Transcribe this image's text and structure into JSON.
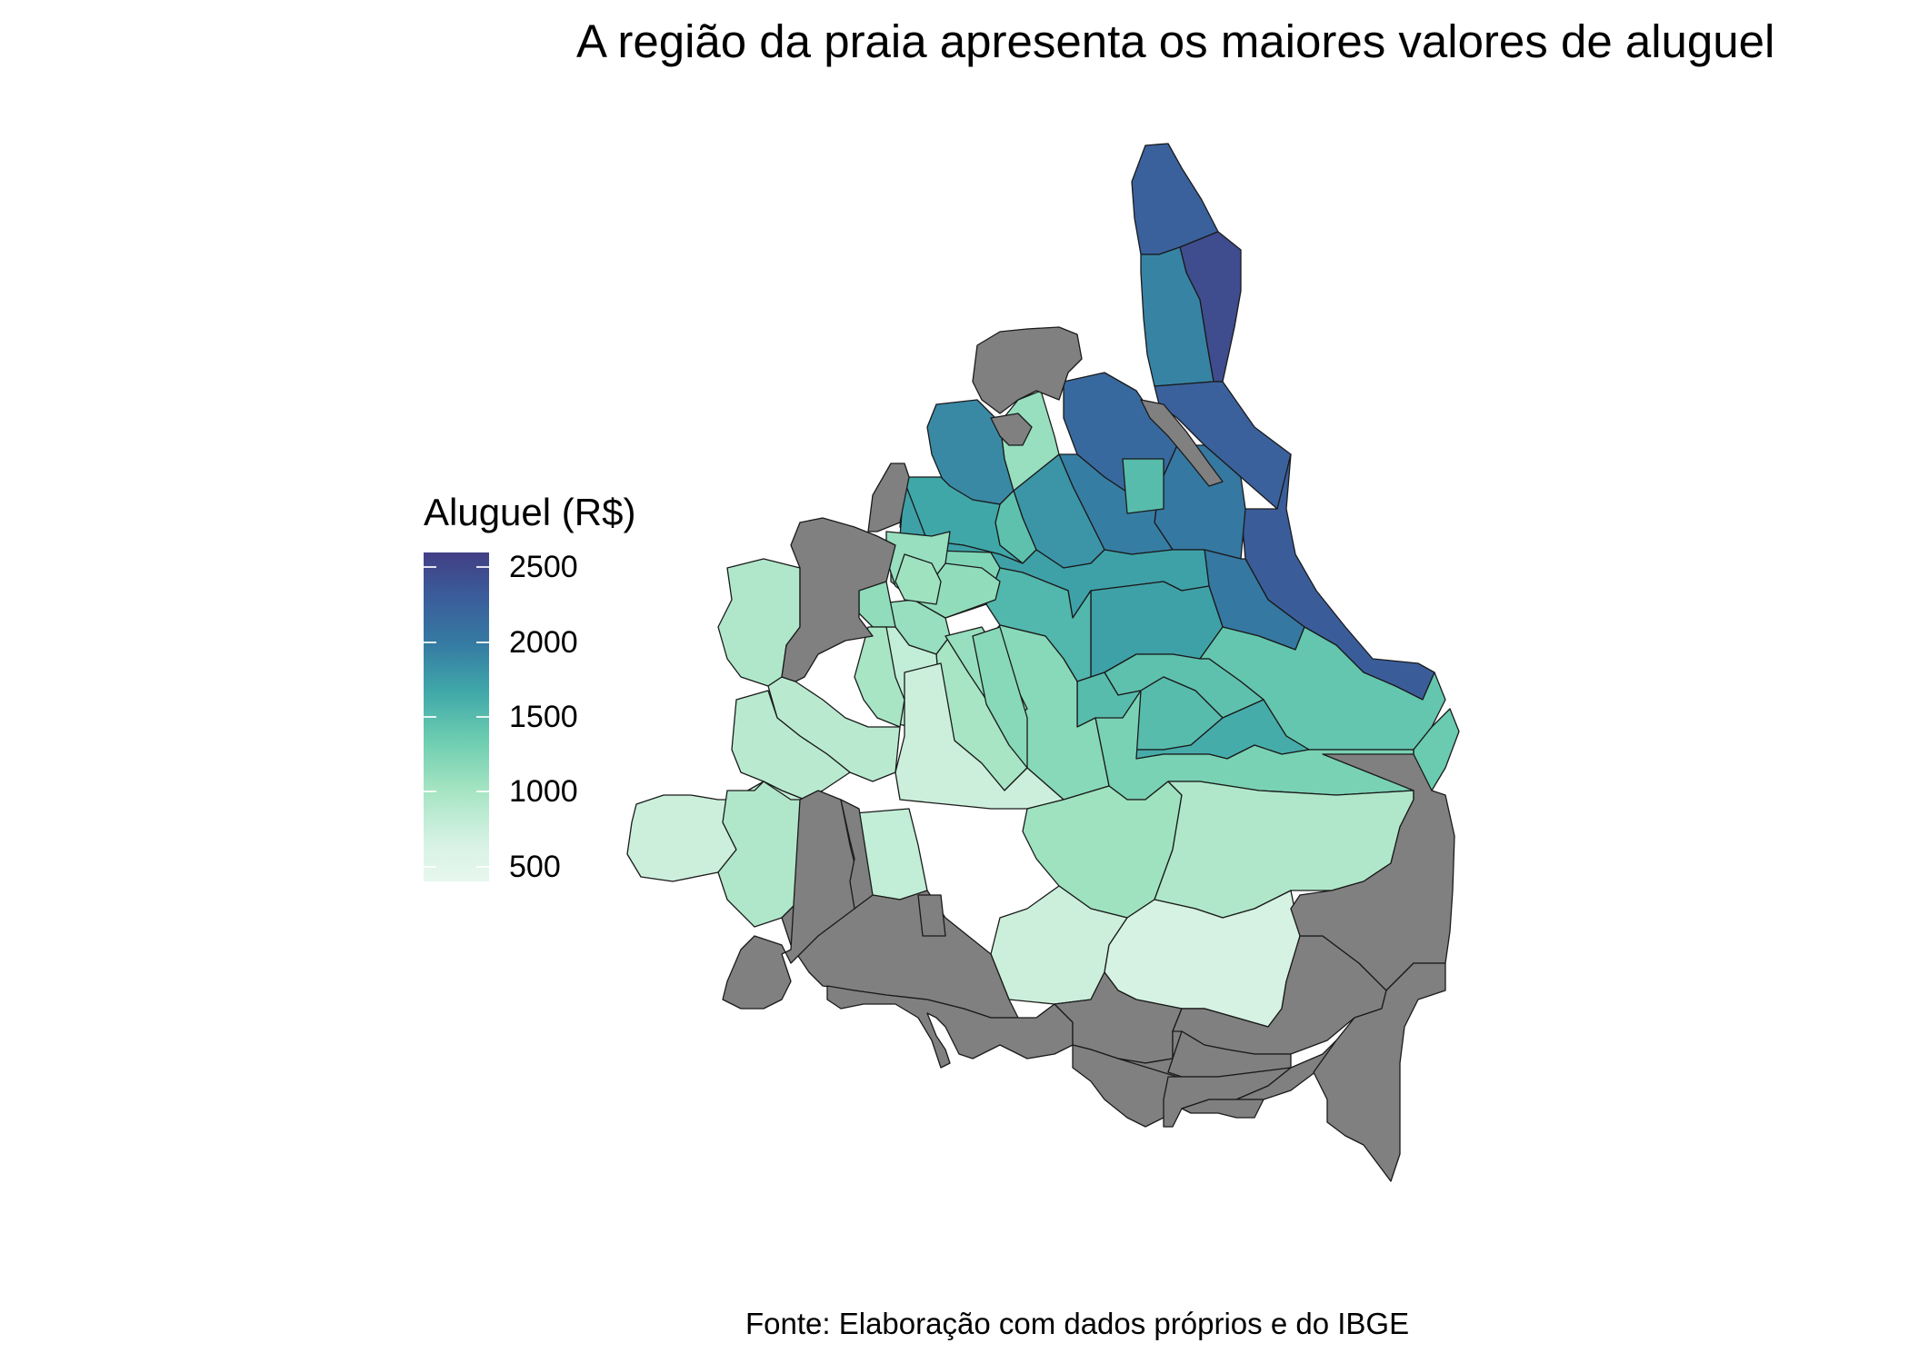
{
  "title": "A região da praia apresenta os maiores valores de aluguel",
  "caption": "Fonte: Elaboração com dados próprios e do IBGE",
  "legend": {
    "title": "Aluguel (R$)",
    "ticks": [
      {
        "value": 2500,
        "label": "2500"
      },
      {
        "value": 2000,
        "label": "2000"
      },
      {
        "value": 1500,
        "label": "1500"
      },
      {
        "value": 1000,
        "label": "1000"
      },
      {
        "value": 500,
        "label": "500"
      }
    ],
    "range": [
      400,
      2600
    ],
    "na_color": "#808080",
    "colors": [
      "#423f85",
      "#3a5e9b",
      "#357ba3",
      "#40a7a9",
      "#6ccdb0",
      "#a4e4c2",
      "#e7f7ee"
    ]
  },
  "chart_data": {
    "type": "choropleth",
    "variable": "Aluguel (R$)",
    "regions": [
      {
        "value": 2200
      },
      {
        "value": 2450
      },
      {
        "value": 1800
      },
      {
        "value": 2200
      },
      {
        "value": 2250
      },
      {
        "value": 2100
      },
      {
        "value": 1900
      },
      {
        "value": 1900
      },
      {
        "value": 1750
      },
      {
        "value": 1850
      },
      {
        "value": 1650
      },
      {
        "value": 1300
      },
      {
        "value": 850
      },
      {
        "value": 1250
      },
      {
        "value": 1500
      },
      {
        "value": 1550
      },
      {
        "value": 1550
      },
      {
        "value": 1350
      },
      {
        "value": 1200
      },
      {
        "value": 1250
      },
      {
        "value": 1300
      },
      {
        "value": 1450
      },
      {
        "value": 1150
      },
      {
        "value": 1050
      },
      {
        "value": 1000
      },
      {
        "value": 950
      },
      {
        "value": 850
      },
      {
        "value": 750
      },
      {
        "value": 600
      },
      {
        "value": 550
      },
      {
        "value": 800
      },
      {
        "value": 700
      },
      {
        "value": 550
      },
      {
        "value": 500
      },
      {
        "value": 850
      },
      {
        "value": 900
      },
      {
        "value": 800
      },
      {
        "value": 850
      },
      {
        "value": 950
      },
      {
        "value": 900
      },
      {
        "value": 700
      },
      {
        "value": 750
      },
      {
        "value": 650
      },
      {
        "value": 600
      },
      {
        "value": 650
      },
      {
        "value": 600
      },
      {
        "value": 550
      },
      {
        "value": 700
      },
      {
        "value": null
      },
      {
        "value": null
      },
      {
        "value": null
      },
      {
        "value": null
      },
      {
        "value": null
      },
      {
        "value": null
      },
      {
        "value": null
      },
      {
        "value": null
      },
      {
        "value": null
      },
      {
        "value": null
      },
      {
        "value": null
      }
    ]
  }
}
